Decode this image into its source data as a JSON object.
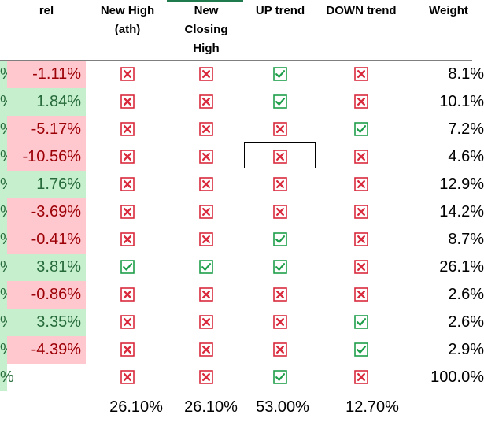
{
  "header": {
    "rel": "rel",
    "new_high": [
      "New High",
      "(ath)"
    ],
    "new_closing_high": [
      "New",
      "Closing",
      "High"
    ],
    "up_trend": "UP trend",
    "down_trend": "DOWN trend",
    "weight": "Weight"
  },
  "colors": {
    "pos_bg": "#c6efce",
    "pos_text": "#276b3a",
    "neg_bg": "#ffc7ce",
    "neg_text": "#9c0006",
    "check": "#1e9e4a",
    "cross": "#d9293d"
  },
  "icons": {
    "yes": "check-box-icon",
    "no": "cross-box-icon"
  },
  "rows": [
    {
      "edge": "%",
      "rel": "-1.11%",
      "sign": "neg",
      "new_high": "no",
      "new_closing_high": "no",
      "up_trend": "yes",
      "down_trend": "no",
      "weight": "8.1%"
    },
    {
      "edge": "%",
      "rel": "1.84%",
      "sign": "pos",
      "new_high": "no",
      "new_closing_high": "no",
      "up_trend": "yes",
      "down_trend": "no",
      "weight": "10.1%"
    },
    {
      "edge": "%",
      "rel": "-5.17%",
      "sign": "neg",
      "new_high": "no",
      "new_closing_high": "no",
      "up_trend": "no",
      "down_trend": "yes",
      "weight": "7.2%"
    },
    {
      "edge": "%",
      "rel": "-10.56%",
      "sign": "neg",
      "new_high": "no",
      "new_closing_high": "no",
      "up_trend": "no",
      "down_trend": "no",
      "weight": "4.6%"
    },
    {
      "edge": "%",
      "rel": "1.76%",
      "sign": "pos",
      "new_high": "no",
      "new_closing_high": "no",
      "up_trend": "no",
      "down_trend": "no",
      "weight": "12.9%"
    },
    {
      "edge": "%",
      "rel": "-3.69%",
      "sign": "neg",
      "new_high": "no",
      "new_closing_high": "no",
      "up_trend": "no",
      "down_trend": "no",
      "weight": "14.2%"
    },
    {
      "edge": "%",
      "rel": "-0.41%",
      "sign": "neg",
      "new_high": "no",
      "new_closing_high": "no",
      "up_trend": "yes",
      "down_trend": "no",
      "weight": "8.7%"
    },
    {
      "edge": "%",
      "rel": "3.81%",
      "sign": "pos",
      "new_high": "yes",
      "new_closing_high": "yes",
      "up_trend": "yes",
      "down_trend": "no",
      "weight": "26.1%"
    },
    {
      "edge": "%",
      "rel": "-0.86%",
      "sign": "neg",
      "new_high": "no",
      "new_closing_high": "no",
      "up_trend": "no",
      "down_trend": "no",
      "weight": "2.6%"
    },
    {
      "edge": "%",
      "rel": "3.35%",
      "sign": "pos",
      "new_high": "no",
      "new_closing_high": "no",
      "up_trend": "no",
      "down_trend": "yes",
      "weight": "2.6%"
    },
    {
      "edge": "%",
      "rel": "-4.39%",
      "sign": "neg",
      "new_high": "no",
      "new_closing_high": "no",
      "up_trend": "no",
      "down_trend": "yes",
      "weight": "2.9%"
    },
    {
      "edge": "%",
      "rel": "",
      "sign": "none",
      "new_high": "no",
      "new_closing_high": "no",
      "up_trend": "yes",
      "down_trend": "no",
      "weight": "100.0%"
    }
  ],
  "totals": {
    "new_high": "26.10%",
    "new_closing_high": "26.10%",
    "up_trend": "53.00%",
    "down_trend": "12.70%"
  }
}
